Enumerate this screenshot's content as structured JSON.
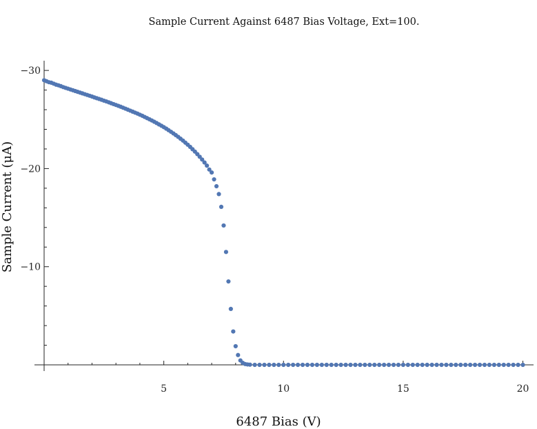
{
  "chart_data": {
    "type": "scatter",
    "title": "Sample Current Against 6487 Bias Voltage, Ext=100.",
    "xlabel": "6487 Bias (V)",
    "ylabel": "Sample Current (μA)",
    "xlim": [
      0,
      20.1
    ],
    "ylim": [
      0,
      -30.5
    ],
    "x_major_ticks": [
      5,
      10,
      15,
      20
    ],
    "y_major_ticks": [
      -10,
      -20,
      -30
    ],
    "x_tick_labels": [
      "5",
      "10",
      "15",
      "20"
    ],
    "y_tick_labels": [
      "−10",
      "−20",
      "−30"
    ],
    "grid": false,
    "legend": "none",
    "marker_color": "#5277b3",
    "points": [
      [
        0.0,
        -29.0
      ],
      [
        0.1,
        -28.9
      ],
      [
        0.2,
        -28.8
      ],
      [
        0.3,
        -28.75
      ],
      [
        0.4,
        -28.65
      ],
      [
        0.5,
        -28.55
      ],
      [
        0.6,
        -28.48
      ],
      [
        0.7,
        -28.4
      ],
      [
        0.8,
        -28.3
      ],
      [
        0.9,
        -28.22
      ],
      [
        1.0,
        -28.14
      ],
      [
        1.1,
        -28.06
      ],
      [
        1.2,
        -27.98
      ],
      [
        1.3,
        -27.9
      ],
      [
        1.4,
        -27.82
      ],
      [
        1.5,
        -27.74
      ],
      [
        1.6,
        -27.66
      ],
      [
        1.7,
        -27.58
      ],
      [
        1.8,
        -27.5
      ],
      [
        1.9,
        -27.42
      ],
      [
        2.0,
        -27.34
      ],
      [
        2.1,
        -27.25
      ],
      [
        2.2,
        -27.17
      ],
      [
        2.3,
        -27.09
      ],
      [
        2.4,
        -27.01
      ],
      [
        2.5,
        -26.92
      ],
      [
        2.6,
        -26.84
      ],
      [
        2.7,
        -26.75
      ],
      [
        2.8,
        -26.66
      ],
      [
        2.9,
        -26.57
      ],
      [
        3.0,
        -26.48
      ],
      [
        3.1,
        -26.39
      ],
      [
        3.2,
        -26.3
      ],
      [
        3.3,
        -26.2
      ],
      [
        3.4,
        -26.1
      ],
      [
        3.5,
        -26.0
      ],
      [
        3.6,
        -25.9
      ],
      [
        3.7,
        -25.8
      ],
      [
        3.8,
        -25.7
      ],
      [
        3.9,
        -25.6
      ],
      [
        4.0,
        -25.49
      ],
      [
        4.1,
        -25.38
      ],
      [
        4.2,
        -25.26
      ],
      [
        4.3,
        -25.14
      ],
      [
        4.4,
        -25.02
      ],
      [
        4.5,
        -24.9
      ],
      [
        4.6,
        -24.77
      ],
      [
        4.7,
        -24.64
      ],
      [
        4.8,
        -24.5
      ],
      [
        4.9,
        -24.36
      ],
      [
        5.0,
        -24.22
      ],
      [
        5.1,
        -24.07
      ],
      [
        5.2,
        -23.91
      ],
      [
        5.3,
        -23.75
      ],
      [
        5.4,
        -23.58
      ],
      [
        5.5,
        -23.41
      ],
      [
        5.6,
        -23.23
      ],
      [
        5.7,
        -23.04
      ],
      [
        5.8,
        -22.85
      ],
      [
        5.9,
        -22.64
      ],
      [
        6.0,
        -22.43
      ],
      [
        6.1,
        -22.21
      ],
      [
        6.2,
        -21.97
      ],
      [
        6.3,
        -21.73
      ],
      [
        6.4,
        -21.47
      ],
      [
        6.5,
        -21.2
      ],
      [
        6.6,
        -20.92
      ],
      [
        6.7,
        -20.62
      ],
      [
        6.8,
        -20.3
      ],
      [
        6.9,
        -19.9
      ],
      [
        7.0,
        -19.6
      ],
      [
        7.1,
        -18.9
      ],
      [
        7.2,
        -18.2
      ],
      [
        7.3,
        -17.4
      ],
      [
        7.4,
        -16.1
      ],
      [
        7.5,
        -14.2
      ],
      [
        7.6,
        -11.5
      ],
      [
        7.7,
        -8.5
      ],
      [
        7.8,
        -5.7
      ],
      [
        7.9,
        -3.4
      ],
      [
        8.0,
        -1.9
      ],
      [
        8.1,
        -1.0
      ],
      [
        8.2,
        -0.45
      ],
      [
        8.3,
        -0.2
      ],
      [
        8.4,
        -0.08
      ],
      [
        8.5,
        -0.04
      ],
      [
        8.6,
        -0.02
      ],
      [
        8.8,
        0.0
      ],
      [
        9.0,
        0.0
      ],
      [
        9.2,
        0.0
      ],
      [
        9.4,
        0.0
      ],
      [
        9.6,
        0.0
      ],
      [
        9.8,
        0.0
      ],
      [
        10.0,
        0.0
      ],
      [
        10.2,
        0.0
      ],
      [
        10.4,
        0.0
      ],
      [
        10.6,
        0.0
      ],
      [
        10.8,
        0.0
      ],
      [
        11.0,
        0.0
      ],
      [
        11.2,
        0.0
      ],
      [
        11.4,
        0.0
      ],
      [
        11.6,
        0.0
      ],
      [
        11.8,
        0.0
      ],
      [
        12.0,
        0.0
      ],
      [
        12.2,
        0.0
      ],
      [
        12.4,
        0.0
      ],
      [
        12.6,
        0.0
      ],
      [
        12.8,
        0.0
      ],
      [
        13.0,
        0.0
      ],
      [
        13.2,
        0.0
      ],
      [
        13.4,
        0.0
      ],
      [
        13.6,
        0.0
      ],
      [
        13.8,
        0.0
      ],
      [
        14.0,
        0.0
      ],
      [
        14.2,
        0.0
      ],
      [
        14.4,
        0.0
      ],
      [
        14.6,
        0.0
      ],
      [
        14.8,
        0.0
      ],
      [
        15.0,
        0.0
      ],
      [
        15.2,
        0.0
      ],
      [
        15.4,
        0.0
      ],
      [
        15.6,
        0.0
      ],
      [
        15.8,
        0.0
      ],
      [
        16.0,
        0.0
      ],
      [
        16.2,
        0.0
      ],
      [
        16.4,
        0.0
      ],
      [
        16.6,
        0.0
      ],
      [
        16.8,
        0.0
      ],
      [
        17.0,
        0.0
      ],
      [
        17.2,
        0.0
      ],
      [
        17.4,
        0.0
      ],
      [
        17.6,
        0.0
      ],
      [
        17.8,
        0.0
      ],
      [
        18.0,
        0.0
      ],
      [
        18.2,
        0.0
      ],
      [
        18.4,
        0.0
      ],
      [
        18.6,
        0.0
      ],
      [
        18.8,
        0.0
      ],
      [
        19.0,
        0.0
      ],
      [
        19.2,
        0.0
      ],
      [
        19.4,
        0.0
      ],
      [
        19.6,
        0.0
      ],
      [
        19.8,
        0.0
      ],
      [
        20.0,
        0.0
      ]
    ]
  }
}
